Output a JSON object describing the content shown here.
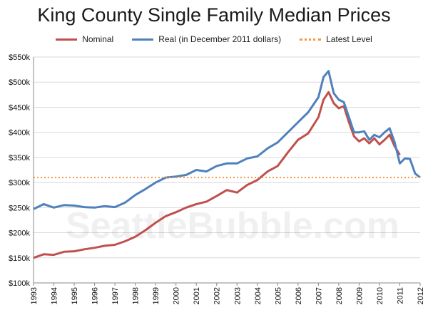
{
  "chart_data": {
    "type": "line",
    "title": "King County Single Family Median Prices",
    "xlabel": "",
    "ylabel": "",
    "xlim": [
      1993,
      2012
    ],
    "ylim": [
      100000,
      550000
    ],
    "y_ticks": [
      "$100k",
      "$150k",
      "$200k",
      "$250k",
      "$300k",
      "$350k",
      "$400k",
      "$450k",
      "$500k",
      "$550k"
    ],
    "x_ticks": [
      "1993",
      "1994",
      "1995",
      "1996",
      "1997",
      "1998",
      "1999",
      "2000",
      "2001",
      "2002",
      "2003",
      "2004",
      "2005",
      "2006",
      "2007",
      "2008",
      "2009",
      "2010",
      "2011",
      "2012"
    ],
    "grid": true,
    "legend": "top",
    "watermark": "SeattleBubble.com",
    "series": [
      {
        "name": "Nominal",
        "color": "#c0504d",
        "x": [
          1993.0,
          1993.5,
          1994.0,
          1994.5,
          1995.0,
          1995.5,
          1996.0,
          1996.5,
          1997.0,
          1997.5,
          1998.0,
          1998.5,
          1999.0,
          1999.5,
          2000.0,
          2000.5,
          2001.0,
          2001.5,
          2002.0,
          2002.5,
          2003.0,
          2003.5,
          2004.0,
          2004.5,
          2005.0,
          2005.5,
          2006.0,
          2006.5,
          2007.0,
          2007.25,
          2007.5,
          2007.75,
          2008.0,
          2008.25,
          2008.5,
          2008.75,
          2009.0,
          2009.25,
          2009.5,
          2009.75,
          2010.0,
          2010.25,
          2010.5,
          2010.75,
          2011.0
        ],
        "y": [
          150000,
          157000,
          156000,
          162000,
          163000,
          167000,
          170000,
          174000,
          176000,
          183000,
          192000,
          205000,
          220000,
          233000,
          241000,
          250000,
          257000,
          262000,
          273000,
          285000,
          280000,
          295000,
          305000,
          322000,
          333000,
          360000,
          385000,
          398000,
          430000,
          465000,
          480000,
          458000,
          448000,
          452000,
          420000,
          392000,
          382000,
          388000,
          378000,
          388000,
          376000,
          385000,
          395000,
          372000,
          355000
        ]
      },
      {
        "name": "Real (in December 2011 dollars)",
        "color": "#4f81bd",
        "x": [
          1993.0,
          1993.5,
          1994.0,
          1994.5,
          1995.0,
          1995.5,
          1996.0,
          1996.5,
          1997.0,
          1997.5,
          1998.0,
          1998.5,
          1999.0,
          1999.5,
          2000.0,
          2000.5,
          2001.0,
          2001.5,
          2002.0,
          2002.5,
          2003.0,
          2003.5,
          2004.0,
          2004.5,
          2005.0,
          2005.5,
          2006.0,
          2006.5,
          2007.0,
          2007.25,
          2007.5,
          2007.75,
          2008.0,
          2008.25,
          2008.5,
          2008.75,
          2009.0,
          2009.25,
          2009.5,
          2009.75,
          2010.0,
          2010.25,
          2010.5,
          2010.75,
          2011.0,
          2011.25,
          2011.5,
          2011.75,
          2012.0
        ],
        "y": [
          247000,
          257000,
          250000,
          255000,
          254000,
          251000,
          250000,
          253000,
          251000,
          260000,
          275000,
          287000,
          300000,
          310000,
          312000,
          315000,
          325000,
          322000,
          333000,
          338000,
          338000,
          348000,
          352000,
          368000,
          380000,
          400000,
          420000,
          440000,
          470000,
          510000,
          522000,
          478000,
          465000,
          460000,
          430000,
          400000,
          400000,
          402000,
          385000,
          395000,
          390000,
          400000,
          408000,
          380000,
          338000,
          348000,
          347000,
          318000,
          310000
        ]
      },
      {
        "name": "Latest Level",
        "color": "#f79646",
        "style": "dotted",
        "y_value": 310000
      }
    ]
  }
}
